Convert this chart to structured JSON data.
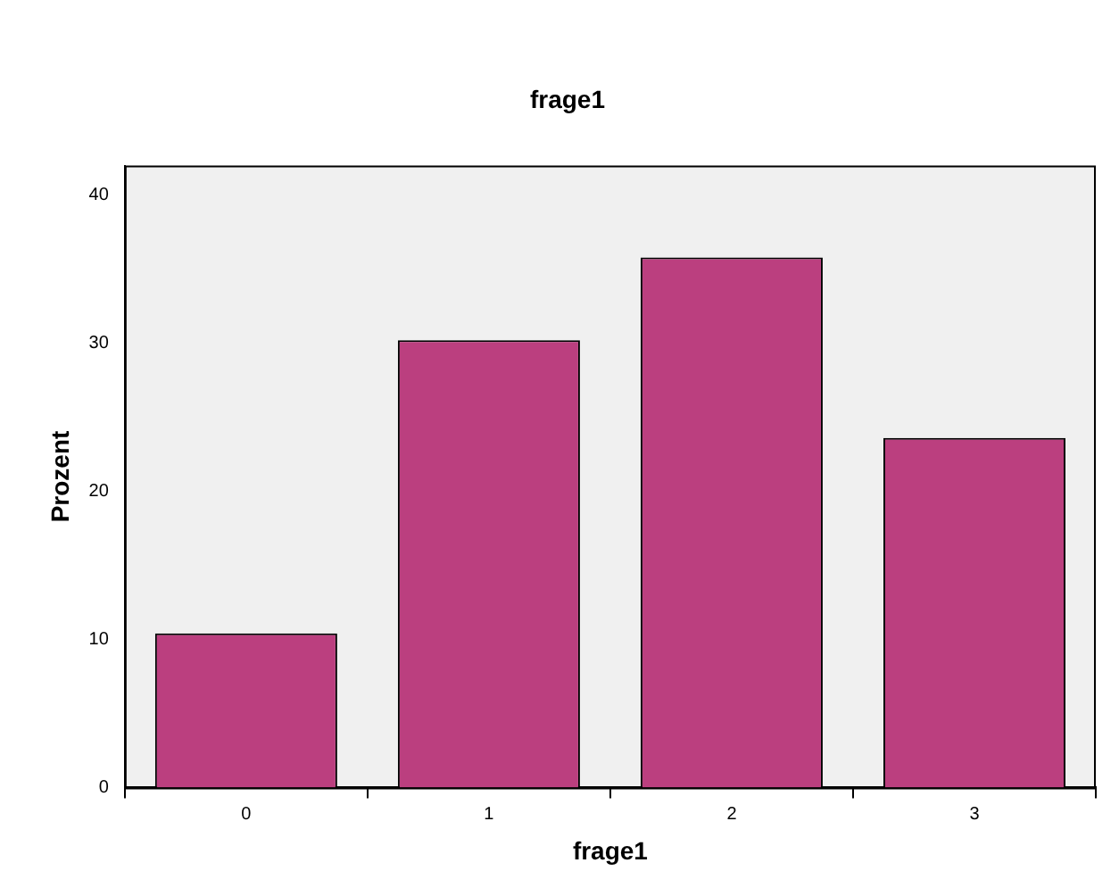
{
  "chart_data": {
    "type": "bar",
    "title": "frage1",
    "xlabel": "frage1",
    "ylabel": "Prozent",
    "categories": [
      "0",
      "1",
      "2",
      "3"
    ],
    "values": [
      10.4,
      30.2,
      35.8,
      23.6
    ],
    "color": "#bb3f7f",
    "ylim": [
      0,
      42
    ],
    "yticks": [
      0,
      10,
      20,
      30,
      40
    ],
    "grid": false,
    "legend": false
  }
}
